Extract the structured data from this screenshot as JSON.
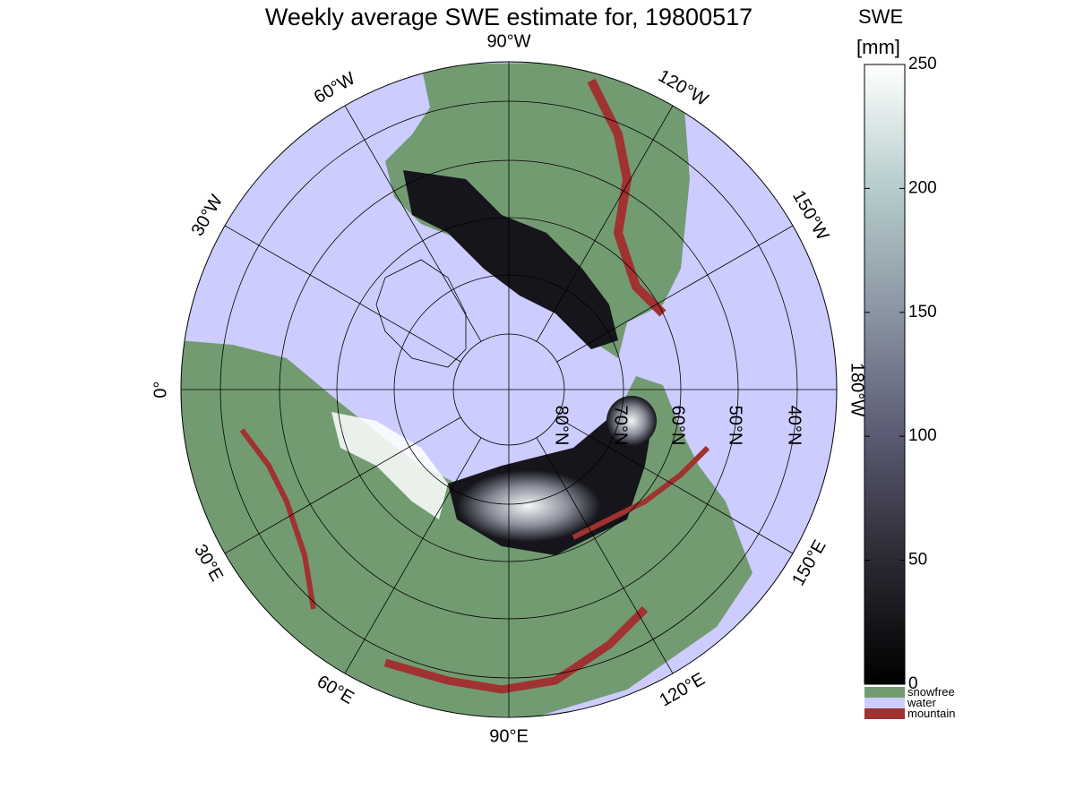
{
  "title": "Weekly average SWE estimate for, 19800517",
  "colorbar": {
    "label_line1": "SWE",
    "label_line2": "[mm]",
    "ticks": [
      "0",
      "50",
      "100",
      "150",
      "200",
      "250"
    ],
    "range": [
      0,
      250
    ],
    "gradient": [
      "#000000",
      "#2a2a33",
      "#5a5a72",
      "#8a95a3",
      "#b5cccc",
      "#ffffff"
    ]
  },
  "legend": [
    {
      "label": "snowfree",
      "color": "#739b72"
    },
    {
      "label": "water",
      "color": "#ccccff"
    },
    {
      "label": "mountain",
      "color": "#a03231"
    }
  ],
  "map": {
    "projection": "north-polar-stereographic",
    "longitude_labels": [
      "90°W",
      "120°W",
      "150°W",
      "180°W",
      "150°E",
      "120°E",
      "90°E",
      "60°E",
      "30°E",
      "0°",
      "30°W",
      "60°W"
    ],
    "latitude_labels": [
      "80°N",
      "70°N",
      "60°N",
      "50°N",
      "40°N"
    ],
    "colors": {
      "water": "#ccccff",
      "land": "#739b72",
      "mountain": "#a03231",
      "snow_low": "#111115",
      "snow_high": "#ffffff"
    }
  }
}
